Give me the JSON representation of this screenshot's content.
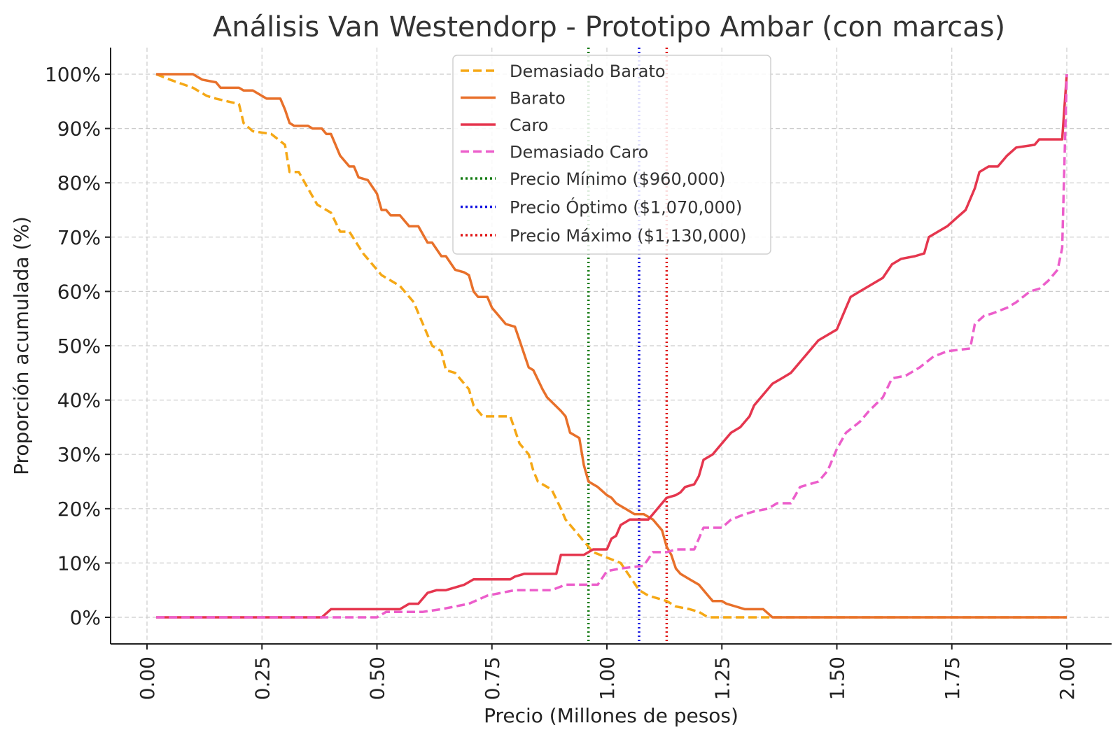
{
  "chart_data": {
    "type": "line",
    "title": "Análisis Van Westendorp - Prototipo Ambar (con marcas)",
    "xlabel": "Precio (Millones de pesos)",
    "ylabel": "Proporción acumulada (%)",
    "xlim": [
      -0.08,
      2.1
    ],
    "ylim": [
      -5,
      105
    ],
    "x_ticks": [
      0.0,
      0.25,
      0.5,
      0.75,
      1.0,
      1.25,
      1.5,
      1.75,
      2.0
    ],
    "x_tick_labels": [
      "0.00",
      "0.25",
      "0.50",
      "0.75",
      "1.00",
      "1.25",
      "1.50",
      "1.75",
      "2.00"
    ],
    "y_ticks": [
      0,
      10,
      20,
      30,
      40,
      50,
      60,
      70,
      80,
      90,
      100
    ],
    "y_tick_labels": [
      "0%",
      "10%",
      "20%",
      "30%",
      "40%",
      "50%",
      "60%",
      "70%",
      "80%",
      "90%",
      "100%"
    ],
    "grid": true,
    "legend_position": "top-center",
    "series": [
      {
        "name": "Demasiado Barato",
        "color": "#f5a816",
        "style": "dashed",
        "points": [
          [
            0.02,
            100
          ],
          [
            0.05,
            99
          ],
          [
            0.1,
            97.5
          ],
          [
            0.13,
            96
          ],
          [
            0.15,
            95.5
          ],
          [
            0.2,
            94.5
          ],
          [
            0.21,
            91
          ],
          [
            0.23,
            89.5
          ],
          [
            0.27,
            89
          ],
          [
            0.3,
            87
          ],
          [
            0.31,
            82
          ],
          [
            0.33,
            82
          ],
          [
            0.35,
            79
          ],
          [
            0.37,
            76
          ],
          [
            0.4,
            74.5
          ],
          [
            0.42,
            71
          ],
          [
            0.44,
            71
          ],
          [
            0.47,
            67
          ],
          [
            0.5,
            64
          ],
          [
            0.51,
            63
          ],
          [
            0.55,
            61
          ],
          [
            0.58,
            58
          ],
          [
            0.59,
            56
          ],
          [
            0.62,
            50
          ],
          [
            0.64,
            49
          ],
          [
            0.65,
            45.5
          ],
          [
            0.67,
            45
          ],
          [
            0.7,
            42
          ],
          [
            0.71,
            39
          ],
          [
            0.73,
            37
          ],
          [
            0.79,
            37
          ],
          [
            0.81,
            32
          ],
          [
            0.83,
            30
          ],
          [
            0.84,
            27
          ],
          [
            0.85,
            25
          ],
          [
            0.88,
            23.5
          ],
          [
            0.9,
            20
          ],
          [
            0.91,
            18
          ],
          [
            0.93,
            16
          ],
          [
            0.95,
            14
          ],
          [
            0.97,
            12
          ],
          [
            1.0,
            11
          ],
          [
            1.03,
            10
          ],
          [
            1.05,
            7.5
          ],
          [
            1.07,
            5
          ],
          [
            1.09,
            4
          ],
          [
            1.13,
            3
          ],
          [
            1.15,
            2
          ],
          [
            1.18,
            1.5
          ],
          [
            1.2,
            1
          ],
          [
            1.22,
            0
          ],
          [
            1.3,
            0
          ],
          [
            1.4,
            0
          ],
          [
            1.5,
            0
          ],
          [
            1.75,
            0
          ],
          [
            2.0,
            0
          ]
        ]
      },
      {
        "name": "Barato",
        "color": "#e8702a",
        "style": "solid",
        "points": [
          [
            0.02,
            100
          ],
          [
            0.1,
            100
          ],
          [
            0.12,
            99
          ],
          [
            0.15,
            98.5
          ],
          [
            0.16,
            97.5
          ],
          [
            0.2,
            97.5
          ],
          [
            0.21,
            97
          ],
          [
            0.23,
            97
          ],
          [
            0.25,
            96
          ],
          [
            0.26,
            95.5
          ],
          [
            0.29,
            95.5
          ],
          [
            0.3,
            93.5
          ],
          [
            0.31,
            91
          ],
          [
            0.32,
            90.5
          ],
          [
            0.35,
            90.5
          ],
          [
            0.36,
            90
          ],
          [
            0.38,
            90
          ],
          [
            0.39,
            89
          ],
          [
            0.4,
            89
          ],
          [
            0.42,
            85
          ],
          [
            0.44,
            83
          ],
          [
            0.45,
            83
          ],
          [
            0.46,
            81
          ],
          [
            0.48,
            80.5
          ],
          [
            0.5,
            78
          ],
          [
            0.51,
            75
          ],
          [
            0.52,
            75
          ],
          [
            0.53,
            74
          ],
          [
            0.55,
            74
          ],
          [
            0.57,
            72
          ],
          [
            0.59,
            72
          ],
          [
            0.61,
            69
          ],
          [
            0.62,
            69
          ],
          [
            0.64,
            66.5
          ],
          [
            0.65,
            66.5
          ],
          [
            0.67,
            64
          ],
          [
            0.69,
            63.5
          ],
          [
            0.7,
            63
          ],
          [
            0.71,
            60
          ],
          [
            0.72,
            59
          ],
          [
            0.74,
            59
          ],
          [
            0.75,
            57
          ],
          [
            0.76,
            56
          ],
          [
            0.78,
            54
          ],
          [
            0.8,
            53.5
          ],
          [
            0.81,
            51
          ],
          [
            0.83,
            46
          ],
          [
            0.84,
            45.5
          ],
          [
            0.86,
            42
          ],
          [
            0.87,
            40.5
          ],
          [
            0.9,
            38
          ],
          [
            0.91,
            37
          ],
          [
            0.92,
            34
          ],
          [
            0.93,
            33.5
          ],
          [
            0.94,
            33
          ],
          [
            0.95,
            28
          ],
          [
            0.96,
            25
          ],
          [
            0.98,
            24
          ],
          [
            1.0,
            22.5
          ],
          [
            1.01,
            22
          ],
          [
            1.02,
            21
          ],
          [
            1.04,
            20
          ],
          [
            1.06,
            19
          ],
          [
            1.08,
            19
          ],
          [
            1.1,
            18
          ],
          [
            1.12,
            16
          ],
          [
            1.13,
            13
          ],
          [
            1.14,
            11.5
          ],
          [
            1.15,
            9
          ],
          [
            1.16,
            8
          ],
          [
            1.18,
            7
          ],
          [
            1.2,
            6
          ],
          [
            1.22,
            4
          ],
          [
            1.23,
            3
          ],
          [
            1.25,
            3
          ],
          [
            1.26,
            2.5
          ],
          [
            1.28,
            2
          ],
          [
            1.3,
            1.5
          ],
          [
            1.34,
            1.5
          ],
          [
            1.36,
            0
          ],
          [
            1.5,
            0
          ],
          [
            1.75,
            0
          ],
          [
            2.0,
            0
          ]
        ]
      },
      {
        "name": "Caro",
        "color": "#e5364e",
        "style": "solid",
        "points": [
          [
            0.02,
            0
          ],
          [
            0.38,
            0
          ],
          [
            0.4,
            1.5
          ],
          [
            0.55,
            1.5
          ],
          [
            0.57,
            2.5
          ],
          [
            0.59,
            2.5
          ],
          [
            0.61,
            4.5
          ],
          [
            0.63,
            5
          ],
          [
            0.65,
            5
          ],
          [
            0.67,
            5.5
          ],
          [
            0.69,
            6
          ],
          [
            0.71,
            7
          ],
          [
            0.79,
            7
          ],
          [
            0.8,
            7.5
          ],
          [
            0.82,
            8
          ],
          [
            0.89,
            8
          ],
          [
            0.9,
            11.5
          ],
          [
            0.95,
            11.5
          ],
          [
            0.97,
            12.5
          ],
          [
            1.0,
            12.5
          ],
          [
            1.01,
            14.5
          ],
          [
            1.02,
            15
          ],
          [
            1.03,
            17
          ],
          [
            1.05,
            18
          ],
          [
            1.07,
            18
          ],
          [
            1.09,
            18
          ],
          [
            1.1,
            19
          ],
          [
            1.12,
            21
          ],
          [
            1.13,
            22
          ],
          [
            1.15,
            22.5
          ],
          [
            1.16,
            23
          ],
          [
            1.17,
            24
          ],
          [
            1.19,
            24.5
          ],
          [
            1.2,
            26
          ],
          [
            1.21,
            29
          ],
          [
            1.23,
            30
          ],
          [
            1.24,
            31
          ],
          [
            1.26,
            33
          ],
          [
            1.27,
            34
          ],
          [
            1.29,
            35
          ],
          [
            1.31,
            37
          ],
          [
            1.32,
            39
          ],
          [
            1.34,
            41
          ],
          [
            1.36,
            43
          ],
          [
            1.38,
            44
          ],
          [
            1.4,
            45
          ],
          [
            1.42,
            47
          ],
          [
            1.44,
            49
          ],
          [
            1.46,
            51
          ],
          [
            1.48,
            52
          ],
          [
            1.5,
            53
          ],
          [
            1.52,
            57
          ],
          [
            1.53,
            59
          ],
          [
            1.55,
            60
          ],
          [
            1.57,
            61
          ],
          [
            1.6,
            62.5
          ],
          [
            1.62,
            65
          ],
          [
            1.64,
            66
          ],
          [
            1.67,
            66.5
          ],
          [
            1.69,
            67
          ],
          [
            1.7,
            70
          ],
          [
            1.72,
            71
          ],
          [
            1.74,
            72
          ],
          [
            1.76,
            73.5
          ],
          [
            1.78,
            75
          ],
          [
            1.8,
            79
          ],
          [
            1.81,
            82
          ],
          [
            1.83,
            83
          ],
          [
            1.85,
            83
          ],
          [
            1.87,
            85
          ],
          [
            1.89,
            86.5
          ],
          [
            1.93,
            87
          ],
          [
            1.94,
            88
          ],
          [
            1.99,
            88
          ],
          [
            2.0,
            100
          ]
        ]
      },
      {
        "name": "Demasiado Caro",
        "color": "#ec5ecb",
        "style": "dashed",
        "points": [
          [
            0.02,
            0
          ],
          [
            0.5,
            0
          ],
          [
            0.52,
            1
          ],
          [
            0.6,
            1
          ],
          [
            0.64,
            1.5
          ],
          [
            0.67,
            2
          ],
          [
            0.7,
            2.5
          ],
          [
            0.74,
            4
          ],
          [
            0.77,
            4.5
          ],
          [
            0.8,
            5
          ],
          [
            0.88,
            5
          ],
          [
            0.91,
            6
          ],
          [
            0.98,
            6
          ],
          [
            1.0,
            8.5
          ],
          [
            1.03,
            9
          ],
          [
            1.08,
            9.5
          ],
          [
            1.1,
            12
          ],
          [
            1.13,
            12
          ],
          [
            1.15,
            12.5
          ],
          [
            1.19,
            12.5
          ],
          [
            1.21,
            16.5
          ],
          [
            1.25,
            16.5
          ],
          [
            1.27,
            18
          ],
          [
            1.3,
            19
          ],
          [
            1.32,
            19.5
          ],
          [
            1.35,
            20
          ],
          [
            1.37,
            21
          ],
          [
            1.4,
            21
          ],
          [
            1.42,
            24
          ],
          [
            1.44,
            24.5
          ],
          [
            1.46,
            25
          ],
          [
            1.48,
            27
          ],
          [
            1.5,
            31
          ],
          [
            1.52,
            34
          ],
          [
            1.55,
            36
          ],
          [
            1.57,
            38
          ],
          [
            1.6,
            40.5
          ],
          [
            1.62,
            44
          ],
          [
            1.65,
            44.5
          ],
          [
            1.68,
            46
          ],
          [
            1.71,
            48
          ],
          [
            1.74,
            49
          ],
          [
            1.79,
            49.5
          ],
          [
            1.8,
            54
          ],
          [
            1.82,
            55.5
          ],
          [
            1.84,
            56
          ],
          [
            1.87,
            57
          ],
          [
            1.89,
            58
          ],
          [
            1.92,
            60
          ],
          [
            1.94,
            60.5
          ],
          [
            1.96,
            62
          ],
          [
            1.98,
            64
          ],
          [
            1.99,
            68
          ],
          [
            2.0,
            100
          ]
        ]
      },
      {
        "name": "Precio Mínimo ($960,000)",
        "color": "#137a12",
        "style": "dotted-vertical",
        "x": 0.96
      },
      {
        "name": "Precio Óptimo ($1,070,000)",
        "color": "#1414e0",
        "style": "dotted-vertical",
        "x": 1.07
      },
      {
        "name": "Precio Máximo ($1,130,000)",
        "color": "#e01414",
        "style": "dotted-vertical",
        "x": 1.13
      }
    ]
  }
}
